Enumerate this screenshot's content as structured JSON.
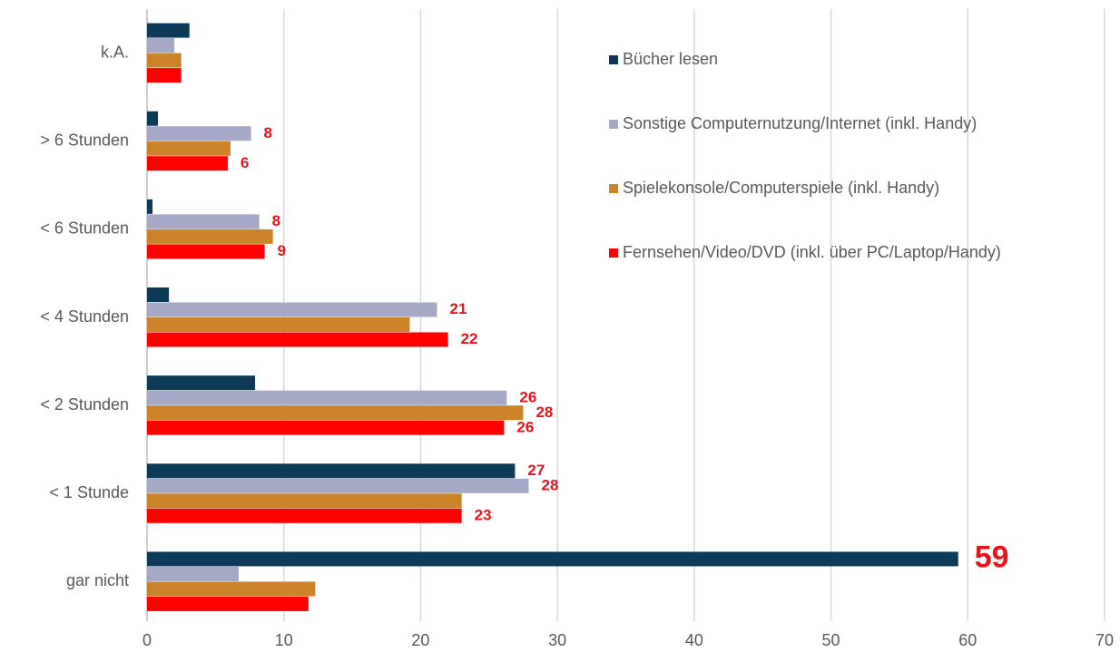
{
  "chart_data": {
    "type": "bar",
    "orientation": "horizontal",
    "categories": [
      "k.A.",
      "> 6 Stunden",
      "< 6 Stunden",
      "< 4 Stunden",
      "< 2 Stunden",
      "< 1 Stunde",
      "gar nicht"
    ],
    "series": [
      {
        "name": "Bücher lesen",
        "color": "#0e3a5a",
        "values": [
          3.1,
          0.8,
          0.4,
          1.6,
          7.9,
          26.9,
          59.3
        ],
        "value_labels": [
          null,
          null,
          null,
          null,
          null,
          "27",
          "59"
        ]
      },
      {
        "name": "Sonstige Computernutzung/Internet (inkl. Handy)",
        "color": "#a5a9c5",
        "values": [
          2.0,
          7.6,
          8.2,
          21.2,
          26.3,
          27.9,
          6.7
        ],
        "value_labels": [
          null,
          "8",
          "8",
          "21",
          "26",
          "28",
          null
        ]
      },
      {
        "name": "Spielekonsole/Computerspiele (inkl. Handy)",
        "color": "#cc8228",
        "values": [
          2.5,
          6.1,
          9.2,
          19.2,
          27.5,
          23.0,
          12.3
        ],
        "value_labels": [
          null,
          null,
          null,
          null,
          "28",
          null,
          null
        ]
      },
      {
        "name": "Fernsehen/Video/DVD (inkl. über PC/Laptop/Handy)",
        "color": "#ff0000",
        "values": [
          2.5,
          5.9,
          8.6,
          22.0,
          26.1,
          23.0,
          11.8
        ],
        "value_labels": [
          null,
          "6",
          "9",
          "22",
          "26",
          "23",
          null
        ]
      }
    ],
    "xlim": [
      0,
      70
    ],
    "xticks": [
      0,
      10,
      20,
      30,
      40,
      50,
      60,
      70
    ],
    "grid": true,
    "legend": "top-right"
  }
}
